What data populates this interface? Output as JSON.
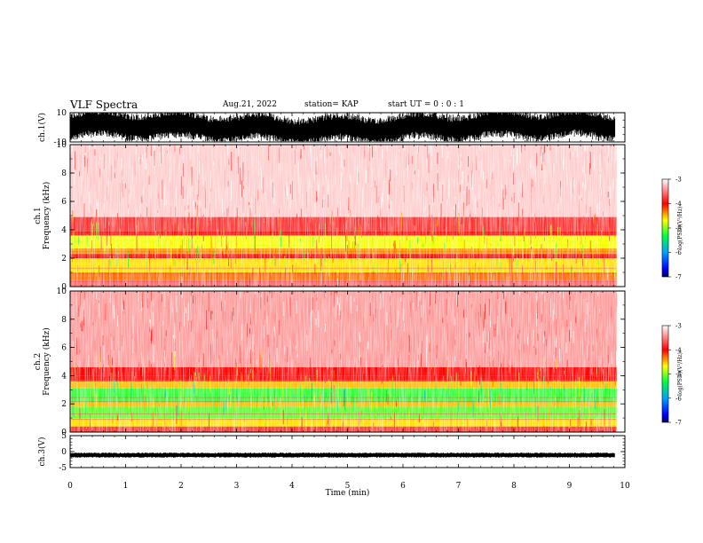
{
  "header": {
    "title": "VLF Spectra",
    "date": "Aug.21, 2022",
    "station": "station= KAP",
    "start": "start UT =  0 : 0  : 1"
  },
  "chart_data": [
    {
      "type": "line",
      "panel": "waveform-ch1",
      "ylabel": "ch.1(V)",
      "ylim": [
        -10,
        10
      ],
      "yticks": [
        "10",
        "-10"
      ],
      "xlim": [
        0,
        10
      ],
      "description_series": "dense oscillating waveform, amplitude spanning roughly -8 to 10 V"
    },
    {
      "type": "heatmap",
      "panel": "spectrogram-ch1",
      "ylabel": "ch.1\nFrequency  (kHz)",
      "ylim": [
        0,
        10
      ],
      "yticks": [
        "0",
        "2",
        "4",
        "6",
        "8",
        "10"
      ],
      "xlim": [
        0,
        9.85
      ],
      "bands": [
        {
          "from": 0,
          "to": 0.5,
          "level": -3.6
        },
        {
          "from": 0.5,
          "to": 1.0,
          "level": -4.3
        },
        {
          "from": 1.0,
          "to": 2.0,
          "level": -4.6
        },
        {
          "from": 2.0,
          "to": 2.3,
          "level": -4.0
        },
        {
          "from": 2.3,
          "to": 2.7,
          "level": -4.4
        },
        {
          "from": 2.7,
          "to": 3.6,
          "level": -4.7
        },
        {
          "from": 3.6,
          "to": 3.9,
          "level": -4.0
        },
        {
          "from": 3.9,
          "to": 4.9,
          "level": -3.8
        },
        {
          "from": 4.9,
          "to": 10,
          "level": -3.2
        }
      ],
      "colorbar": {
        "label": "log(PSD)(V²/Hz)",
        "range": [
          -7,
          -3
        ],
        "ticks": [
          "-3",
          "-4",
          "-5",
          "-6",
          "-7"
        ]
      }
    },
    {
      "type": "heatmap",
      "panel": "spectrogram-ch2",
      "ylabel": "ch.2\nFrequency  (kHz)",
      "ylim": [
        0,
        10
      ],
      "yticks": [
        "0",
        "2",
        "4",
        "6",
        "8",
        "10"
      ],
      "xlim": [
        0,
        9.85
      ],
      "bands": [
        {
          "from": 0,
          "to": 0.4,
          "level": -3.8
        },
        {
          "from": 0.4,
          "to": 1.0,
          "level": -4.6
        },
        {
          "from": 1.0,
          "to": 1.8,
          "level": -5.1
        },
        {
          "from": 1.8,
          "to": 2.1,
          "level": -4.5
        },
        {
          "from": 2.1,
          "to": 3.1,
          "level": -5.2
        },
        {
          "from": 3.1,
          "to": 3.6,
          "level": -4.5
        },
        {
          "from": 3.6,
          "to": 4.6,
          "level": -4.0
        },
        {
          "from": 4.6,
          "to": 10,
          "level": -3.4
        }
      ],
      "colorbar": {
        "label": "log(PSD)(V²/Hz)",
        "range": [
          -7,
          -3
        ],
        "ticks": [
          "-3",
          "-4",
          "-5",
          "-6",
          "-7"
        ]
      }
    },
    {
      "type": "line",
      "panel": "waveform-ch3",
      "ylabel": "ch.3(V)",
      "ylim": [
        -5,
        5
      ],
      "yticks": [
        "5",
        "0",
        "-5"
      ],
      "xlim": [
        0,
        10
      ],
      "description_series": "flat band near -1 V with small fluctuations"
    }
  ],
  "xaxis": {
    "label": "Time  (min)",
    "ticks": [
      "0",
      "1",
      "2",
      "3",
      "4",
      "5",
      "6",
      "7",
      "8",
      "9",
      "10"
    ]
  }
}
